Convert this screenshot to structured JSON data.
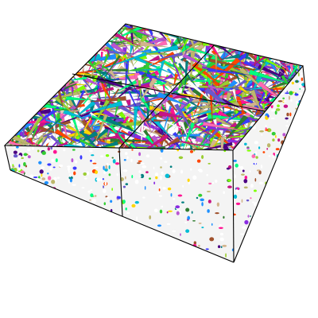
{
  "scene": {
    "subject": "packed-rods-box",
    "background": "#ffffff",
    "edge_color": "#000000",
    "top_face_grid": [
      2,
      2
    ],
    "rod_palette": [
      "#3a3aff",
      "#2f7d2f",
      "#8a2be2",
      "#c71585",
      "#1e90ff",
      "#32cd32",
      "#ff69b4",
      "#9acd32",
      "#00bcd4",
      "#ffd700",
      "#7fff00",
      "#ff1493",
      "#4b0082",
      "#a0522d",
      "#d2b48c",
      "#00ff7f",
      "#6a5acd",
      "#ff4500",
      "#008080",
      "#ba55d3",
      "#ffffff",
      "#bdb76b"
    ],
    "rod_count": 1100,
    "side_rod_count": 260
  }
}
